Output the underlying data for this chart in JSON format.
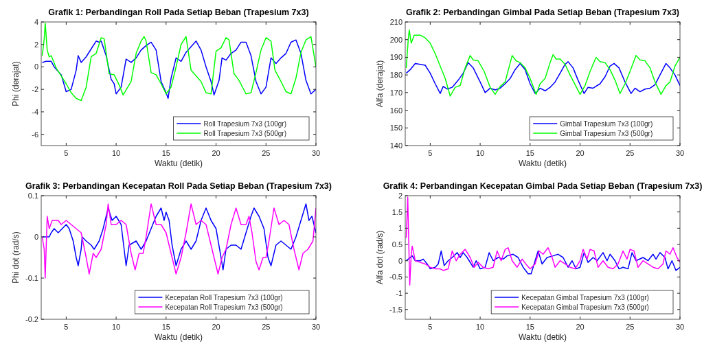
{
  "chart_data": [
    {
      "type": "line",
      "title": "Grafik 1: Perbandingan Roll Pada Setiap Beban (Trapesium 7x3)",
      "xlabel": "Waktu (detik)",
      "ylabel": "Phi (derajat)",
      "xlim": [
        2.5,
        30
      ],
      "xticks": [
        5,
        10,
        15,
        20,
        25,
        30
      ],
      "ylim": [
        -7,
        4
      ],
      "yticks": [
        -6,
        -4,
        -2,
        0,
        2,
        4
      ],
      "legend": "bottom right",
      "grid": false,
      "series": [
        {
          "name": "Roll Trapesium 7x3 (100gr)",
          "color": "#0000ff",
          "x": [
            2.6,
            3.0,
            3.5,
            3.8,
            4.2,
            4.5,
            5.0,
            5.5,
            6.0,
            6.2,
            6.5,
            7.0,
            7.5,
            8.0,
            8.3,
            8.5,
            9.0,
            9.5,
            9.8,
            10.0,
            10.5,
            11.0,
            11.5,
            12.0,
            12.5,
            13.0,
            13.5,
            14.0,
            14.5,
            15.0,
            15.2,
            15.5,
            16.0,
            16.5,
            17.0,
            17.5,
            18.0,
            18.5,
            19.0,
            19.5,
            19.8,
            20.3,
            20.6,
            21.0,
            21.5,
            22.0,
            22.5,
            23.0,
            23.5,
            24.0,
            24.5,
            25.0,
            25.5,
            26.0,
            26.5,
            27.0,
            27.5,
            28.0,
            28.5,
            29.0,
            29.5,
            30.0
          ],
          "values": [
            0.4,
            0.5,
            0.5,
            0,
            -0.4,
            -0.7,
            -2.2,
            -2.0,
            -0.3,
            1.0,
            0.4,
            0.9,
            1.6,
            2.3,
            2.2,
            2.3,
            1.0,
            -1.1,
            -1.5,
            -2.4,
            -1.8,
            0.7,
            0.4,
            0.8,
            1.5,
            1.9,
            2.2,
            1.5,
            -1.3,
            -2.3,
            -2.8,
            -1.0,
            0.8,
            0.5,
            1.3,
            1.8,
            2.3,
            1.5,
            0,
            -1.3,
            -2.5,
            -1.2,
            0.8,
            0.6,
            1.2,
            1.5,
            2.2,
            2.2,
            1.0,
            -1.3,
            -2.4,
            -1.8,
            0.8,
            0.3,
            0.8,
            1.2,
            2.2,
            2.4,
            1.2,
            -1.2,
            -2.4,
            -2.0
          ]
        },
        {
          "name": "Roll Trapesium 7x3 (500gr)",
          "color": "#00ff00",
          "x": [
            2.6,
            2.8,
            2.9,
            3.1,
            3.3,
            3.5,
            4.0,
            5.0,
            5.5,
            6.0,
            6.5,
            7.0,
            7.5,
            8.0,
            8.5,
            8.8,
            9.3,
            9.8,
            10.3,
            10.7,
            11.5,
            12.0,
            12.5,
            12.8,
            13.0,
            13.5,
            14.0,
            14.5,
            15.0,
            15.5,
            16.0,
            16.5,
            17.0,
            17.5,
            18.0,
            18.5,
            19.0,
            19.5,
            20.0,
            20.5,
            21.0,
            21.3,
            21.8,
            22.3,
            23.0,
            23.5,
            24.0,
            24.5,
            25.0,
            25.5,
            25.9,
            26.5,
            27.0,
            27.5,
            28.0,
            28.5,
            29.0,
            29.5,
            30.0
          ],
          "values": [
            1.0,
            2.5,
            3.9,
            1.5,
            0.9,
            1.0,
            -0.1,
            -1.5,
            -2.3,
            -2.8,
            -3.0,
            -1.8,
            0.9,
            1.2,
            2.6,
            2.5,
            -0.6,
            -0.7,
            -1.6,
            -2.5,
            -1.3,
            1.2,
            2.3,
            2.7,
            2.3,
            -0.5,
            -0.7,
            -1.5,
            -2.4,
            -1.8,
            0,
            2.0,
            2.7,
            -0.3,
            -0.8,
            -1.3,
            -2.3,
            -2.4,
            1.4,
            1.7,
            2.6,
            2.4,
            -0.6,
            -1.2,
            -2.4,
            -2.3,
            -0.5,
            1.5,
            2.6,
            2.3,
            -0.3,
            -1.3,
            -2.2,
            -2.4,
            -1.0,
            1.3,
            2.4,
            2.7,
            0
          ]
        }
      ]
    },
    {
      "type": "line",
      "title": "Grafik 2: Perbandingan Gimbal Pada Setiap Beban (Trapesium 7x3)",
      "xlabel": "Waktu (detik)",
      "ylabel": "Alfa (derajat)",
      "xlim": [
        2.5,
        30
      ],
      "xticks": [
        5,
        10,
        15,
        20,
        25,
        30
      ],
      "ylim": [
        140,
        210
      ],
      "yticks": [
        140,
        150,
        160,
        170,
        180,
        190,
        200,
        210
      ],
      "legend": "bottom right",
      "grid": false,
      "series": [
        {
          "name": "Gimbal Trapesium 7x3 (100gr)",
          "color": "#0000ff",
          "x": [
            2.6,
            3.0,
            3.5,
            4.0,
            4.5,
            5.0,
            5.5,
            6.0,
            6.3,
            6.7,
            7.2,
            7.8,
            8.3,
            8.8,
            9.3,
            10.0,
            10.5,
            11.0,
            11.5,
            12.0,
            12.5,
            13.0,
            13.5,
            14.0,
            14.5,
            15.0,
            15.5,
            16.0,
            16.5,
            17.0,
            17.5,
            18.0,
            18.5,
            18.8,
            19.3,
            19.8,
            20.4,
            20.8,
            21.3,
            22.0,
            22.5,
            23.0,
            23.4,
            23.9,
            24.5,
            25.1,
            25.5,
            26.0,
            26.5,
            27.0,
            27.5,
            28.0,
            28.6,
            29.0,
            29.5,
            30.0
          ],
          "values": [
            181,
            183,
            186.5,
            186,
            185.5,
            181,
            175,
            169.5,
            173.5,
            172,
            173,
            177,
            181,
            187,
            184,
            176,
            170,
            172.5,
            171.5,
            172.5,
            175,
            178,
            183,
            186.5,
            183,
            175,
            169.5,
            172.5,
            171,
            173,
            176,
            181,
            186,
            187.5,
            184,
            177,
            169.5,
            173,
            172.5,
            175,
            179,
            185,
            186.5,
            184,
            176,
            169.5,
            172.5,
            170.5,
            172,
            172.5,
            174.5,
            180,
            186.5,
            184,
            180,
            174
          ]
        },
        {
          "name": "Gimbal Trapesium 7x3 (500gr)",
          "color": "#00ff00",
          "x": [
            2.6,
            2.8,
            2.9,
            3.1,
            3.4,
            4.0,
            4.5,
            5.0,
            5.5,
            6.0,
            6.5,
            7.0,
            7.5,
            8.0,
            8.5,
            9.0,
            9.3,
            9.8,
            10.4,
            11.0,
            11.5,
            12.0,
            12.5,
            13.2,
            13.6,
            14.0,
            14.5,
            15.0,
            15.6,
            16.0,
            16.5,
            17.0,
            17.3,
            17.6,
            18.0,
            18.5,
            19.0,
            20.0,
            20.5,
            21.0,
            21.6,
            22.0,
            22.5,
            23.0,
            23.5,
            24.0,
            24.5,
            25.0,
            25.6,
            26.0,
            26.5,
            27.0,
            27.5,
            28.1,
            28.6,
            29.0,
            29.5,
            30.0
          ],
          "values": [
            184,
            200,
            205.5,
            198,
            202.5,
            202.5,
            201,
            198,
            192,
            185,
            178,
            168,
            173,
            174,
            184,
            191,
            188.5,
            188,
            182,
            173,
            169,
            173.5,
            176,
            191,
            188,
            187,
            184,
            178,
            169,
            175,
            178,
            187,
            191.5,
            189,
            189,
            186,
            180,
            169,
            174,
            182,
            190,
            187.5,
            187,
            183,
            177,
            169.5,
            175,
            182,
            191,
            188.5,
            188,
            184,
            176,
            169,
            174,
            176,
            185,
            190
          ]
        }
      ]
    },
    {
      "type": "line",
      "title": "Grafik 3: Perbandingan Kecepatan Roll Pada Setiap Beban (Trapesium 7x3)",
      "xlabel": "Waktu (detik)",
      "ylabel": "Phi dot (rad/s)",
      "xlim": [
        2.5,
        30
      ],
      "xticks": [
        5,
        10,
        15,
        20,
        25,
        30
      ],
      "ylim": [
        -0.2,
        0.1
      ],
      "yticks": [
        -0.2,
        -0.1,
        0,
        0.1
      ],
      "legend": "bottom right",
      "grid": false,
      "series": [
        {
          "name": "Kecepatan Roll Trapesium 7x3 (100gr)",
          "color": "#0000ff",
          "x": [
            2.6,
            3.3,
            3.5,
            3.8,
            4.2,
            4.6,
            5.0,
            5.3,
            5.7,
            6.0,
            6.2,
            6.5,
            6.6,
            7.0,
            7.5,
            7.8,
            8.3,
            8.7,
            9.2,
            9.6,
            10.0,
            10.5,
            11.0,
            11.3,
            12.0,
            12.5,
            13.0,
            13.5,
            14.0,
            14.5,
            14.8,
            15.0,
            15.3,
            15.6,
            16.0,
            16.5,
            17.0,
            17.5,
            18.0,
            18.5,
            19.0,
            19.5,
            20.0,
            20.5,
            20.7,
            21.0,
            21.5,
            22.0,
            22.5,
            23.0,
            23.5,
            23.8,
            24.3,
            24.8,
            25.2,
            25.5,
            26.0,
            26.5,
            27.0,
            27.5,
            28.0,
            28.5,
            29.0,
            29.3,
            29.6,
            30.0
          ],
          "values": [
            0,
            0,
            0.01,
            0.02,
            0.01,
            0.02,
            0.03,
            0.02,
            -0.01,
            -0.05,
            -0.07,
            -0.03,
            0,
            -0.01,
            -0.02,
            -0.03,
            -0.01,
            0.02,
            0.07,
            0.04,
            0.05,
            0.03,
            -0.07,
            -0.02,
            -0.01,
            -0.03,
            -0.01,
            0.02,
            0.05,
            0.07,
            0.04,
            0.06,
            0.04,
            -0.02,
            -0.07,
            -0.03,
            -0.01,
            -0.03,
            -0.01,
            0.04,
            0.07,
            0.04,
            0.02,
            -0.05,
            -0.08,
            -0.03,
            -0.02,
            -0.02,
            -0.03,
            0.01,
            0.05,
            0.07,
            0.05,
            0.02,
            -0.05,
            -0.07,
            -0.02,
            -0.01,
            -0.02,
            -0.03,
            0,
            0.04,
            0.08,
            0.04,
            0.05,
            0.01
          ]
        },
        {
          "name": "Kecepatan Roll Trapesium 7x3 (500gr)",
          "color": "#ff00ff",
          "x": [
            2.6,
            2.8,
            2.9,
            3.1,
            3.3,
            3.6,
            4.2,
            4.5,
            5.0,
            5.5,
            6.0,
            6.5,
            7.0,
            7.3,
            7.7,
            8.0,
            8.5,
            9.0,
            9.2,
            9.5,
            10.0,
            10.5,
            11.0,
            11.5,
            11.9,
            12.3,
            12.7,
            13.0,
            13.5,
            14.0,
            14.5,
            15.0,
            15.5,
            16.0,
            16.5,
            17.0,
            17.5,
            18.0,
            18.5,
            19.0,
            19.5,
            20.2,
            20.6,
            21.0,
            21.5,
            22.0,
            22.5,
            23.0,
            23.3,
            23.6,
            24.0,
            24.3,
            24.7,
            25.0,
            25.3,
            25.8,
            26.3,
            26.8,
            27.3,
            27.8,
            28.3,
            28.7,
            29.2,
            29.7,
            30.0
          ],
          "values": [
            0,
            -0.03,
            -0.1,
            0.05,
            0.02,
            0.04,
            0.04,
            0.03,
            0.04,
            0.03,
            0.02,
            0.01,
            -0.05,
            -0.09,
            -0.04,
            -0.05,
            -0.03,
            0.03,
            0.08,
            0.03,
            0.03,
            0.04,
            0.03,
            -0.04,
            -0.08,
            -0.04,
            -0.04,
            0,
            0.08,
            0.03,
            0.03,
            0.01,
            -0.04,
            -0.09,
            -0.05,
            0.01,
            0.08,
            0.03,
            0.04,
            0.03,
            -0.02,
            -0.09,
            -0.05,
            -0.03,
            0.03,
            0.07,
            0.03,
            0.03,
            0.05,
            0.01,
            -0.06,
            -0.08,
            -0.05,
            -0.05,
            -0.01,
            0.07,
            0.03,
            0.04,
            0.03,
            -0.03,
            -0.08,
            -0.04,
            -0.03,
            -0.01,
            0.07
          ]
        }
      ]
    },
    {
      "type": "line",
      "title": "Grafik 4: Perbandingan Kecepatan Gimbal Pada Setiap Beban (Trapesium 7x3)",
      "xlabel": "Waktu (detik)",
      "ylabel": "Alfa dot (rad/s)",
      "xlim": [
        2.5,
        30
      ],
      "xticks": [
        5,
        10,
        15,
        20,
        25,
        30
      ],
      "ylim": [
        -1.8,
        2
      ],
      "yticks": [
        -1.5,
        -1,
        -0.5,
        0,
        0.5,
        1,
        1.5,
        2
      ],
      "legend": "bottom right",
      "grid": false,
      "series": [
        {
          "name": "Kecepatan Gimbal Trapesium 7x3 (100gr)",
          "color": "#0000ff",
          "x": [
            2.6,
            2.8,
            3.2,
            3.5,
            4.0,
            4.3,
            4.7,
            5.0,
            5.5,
            5.8,
            6.1,
            6.4,
            6.8,
            7.2,
            7.7,
            8.0,
            8.3,
            8.7,
            9.3,
            9.6,
            10.0,
            10.5,
            10.9,
            11.3,
            11.8,
            12.3,
            12.7,
            13.3,
            13.8,
            14.3,
            14.8,
            15.1,
            15.4,
            15.8,
            16.2,
            16.7,
            17.3,
            17.8,
            18.3,
            18.8,
            19.2,
            19.6,
            20.0,
            20.4,
            20.8,
            21.3,
            21.7,
            22.3,
            22.7,
            23.0,
            23.5,
            23.9,
            24.3,
            24.8,
            25.2,
            25.6,
            26.3,
            26.8,
            27.3,
            27.6,
            28.0,
            28.5,
            28.8,
            29.2,
            29.6,
            30.0
          ],
          "values": [
            0,
            0.05,
            0.15,
            0,
            0,
            0.05,
            -0.1,
            -0.25,
            -0.2,
            -0.1,
            0.3,
            -0.15,
            0,
            0.1,
            0.25,
            0.1,
            0.25,
            0.1,
            -0.2,
            0,
            -0.25,
            -0.2,
            0.25,
            0,
            0.1,
            0.05,
            0.15,
            0.2,
            0.1,
            -0.2,
            -0.4,
            -0.4,
            -0.1,
            0.3,
            -0.1,
            0.1,
            0.15,
            0.2,
            0.1,
            -0.2,
            0,
            -0.25,
            -0.2,
            0.25,
            -0.05,
            0.1,
            0,
            0.25,
            0,
            0.2,
            0,
            -0.25,
            -0.2,
            -0.25,
            0.25,
            0,
            0.1,
            0,
            0.2,
            0.05,
            0.25,
            0.1,
            -0.25,
            0,
            -0.3,
            -0.2
          ]
        },
        {
          "name": "Kecepatan Gimbal Trapesium 7x3 (500gr)",
          "color": "#ff00ff",
          "x": [
            2.6,
            2.75,
            2.95,
            3.1,
            3.2,
            3.5,
            4.0,
            4.5,
            5.0,
            5.5,
            6.0,
            6.3,
            6.8,
            7.2,
            7.6,
            8.0,
            8.5,
            9.0,
            9.4,
            9.8,
            10.3,
            10.8,
            11.3,
            11.7,
            12.1,
            12.5,
            12.8,
            13.2,
            13.7,
            14.2,
            14.7,
            15.0,
            15.5,
            15.9,
            16.3,
            16.8,
            17.2,
            17.5,
            18.0,
            18.5,
            19.0,
            19.5,
            20.0,
            20.3,
            20.7,
            21.0,
            21.4,
            21.8,
            22.3,
            22.8,
            23.3,
            23.8,
            24.3,
            24.7,
            25.0,
            25.4,
            25.8,
            26.3,
            26.8,
            27.3,
            27.8,
            28.3,
            28.6,
            29.0,
            29.3,
            29.7,
            30.0
          ],
          "values": [
            0.7,
            1.95,
            -0.75,
            0.2,
            0.45,
            0,
            -0.05,
            -0.1,
            -0.2,
            -0.25,
            -0.25,
            -0.3,
            -0.25,
            0.3,
            0,
            0.2,
            0.35,
            0.1,
            -0.2,
            -0.05,
            -0.2,
            -0.25,
            -0.2,
            0.3,
            0,
            0.35,
            0.4,
            0,
            -0.2,
            0.05,
            -0.15,
            -0.25,
            -0.1,
            0.3,
            0.2,
            0.4,
            0.1,
            -0.2,
            0,
            -0.1,
            -0.2,
            -0.25,
            0,
            0.35,
            0.05,
            0.35,
            0.3,
            -0.2,
            0,
            -0.2,
            -0.25,
            -0.1,
            0.3,
            0.05,
            0.35,
            0.3,
            -0.2,
            0,
            -0.1,
            -0.2,
            -0.25,
            -0.1,
            0.3,
            0.2,
            0.4,
            0.1,
            -0.05
          ]
        }
      ]
    }
  ]
}
